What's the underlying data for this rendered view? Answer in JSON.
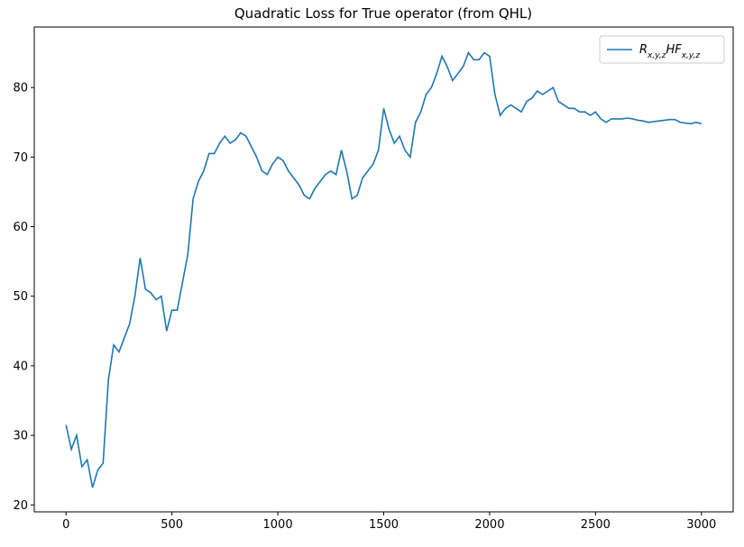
{
  "chart_data": {
    "type": "line",
    "title": "Quadratic Loss for True operator (from QHL)",
    "x": [
      0,
      25,
      50,
      75,
      100,
      125,
      150,
      175,
      200,
      225,
      250,
      275,
      300,
      325,
      350,
      375,
      400,
      425,
      450,
      475,
      500,
      525,
      550,
      575,
      600,
      625,
      650,
      675,
      700,
      725,
      750,
      775,
      800,
      825,
      850,
      875,
      900,
      925,
      950,
      975,
      1000,
      1025,
      1050,
      1075,
      1100,
      1125,
      1150,
      1175,
      1200,
      1225,
      1250,
      1275,
      1300,
      1325,
      1350,
      1375,
      1400,
      1425,
      1450,
      1475,
      1500,
      1525,
      1550,
      1575,
      1600,
      1625,
      1650,
      1675,
      1700,
      1725,
      1750,
      1775,
      1800,
      1825,
      1850,
      1875,
      1900,
      1925,
      1950,
      1975,
      2000,
      2025,
      2050,
      2075,
      2100,
      2125,
      2150,
      2175,
      2200,
      2225,
      2250,
      2275,
      2300,
      2325,
      2350,
      2375,
      2400,
      2425,
      2450,
      2475,
      2500,
      2525,
      2550,
      2575,
      2600,
      2625,
      2650,
      2675,
      2700,
      2725,
      2750,
      2775,
      2800,
      2825,
      2850,
      2875,
      2900,
      2925,
      2950,
      2975,
      3000
    ],
    "series": [
      {
        "name": "R_{x,y,z}HF_{x,y,z}",
        "color": "#1f77b4",
        "values": [
          31.5,
          28,
          30,
          25.5,
          26.5,
          22.5,
          25,
          26,
          38,
          43,
          42,
          44,
          46,
          50,
          55.5,
          51,
          50.5,
          49.5,
          50,
          45,
          48,
          48,
          52,
          56,
          64,
          66.5,
          68,
          70.5,
          70.5,
          72,
          73,
          72,
          72.5,
          73.5,
          73,
          71.5,
          70,
          68,
          67.5,
          69,
          70,
          69.5,
          68,
          67,
          66,
          64.5,
          64,
          65.5,
          66.5,
          67.5,
          68,
          67.5,
          71,
          68,
          64,
          64.5,
          67,
          68,
          69,
          71,
          77,
          74,
          72,
          73,
          71,
          70,
          75,
          76.5,
          79,
          80,
          82,
          84.5,
          83,
          81,
          82,
          83,
          85,
          84,
          84,
          85,
          84.5,
          79,
          76,
          77,
          77.5,
          77,
          76.5,
          78,
          78.5,
          79.5,
          79,
          79.5,
          80,
          78,
          77.5,
          77,
          77,
          76.5,
          76.5,
          76,
          76.5,
          75.5,
          75,
          75.5,
          75.5,
          75.5,
          75.6,
          75.5,
          75.3,
          75.2,
          75,
          75.1,
          75.2,
          75.3,
          75.4,
          75.4,
          75,
          74.9,
          74.8,
          75,
          74.8
        ]
      }
    ],
    "xlim": [
      -150,
      3150
    ],
    "ylim": [
      19.0,
      88.7
    ],
    "xticks": [
      0,
      500,
      1000,
      1500,
      2000,
      2500,
      3000
    ],
    "yticks": [
      20,
      30,
      40,
      50,
      60,
      70,
      80
    ],
    "legend": "upper right"
  }
}
